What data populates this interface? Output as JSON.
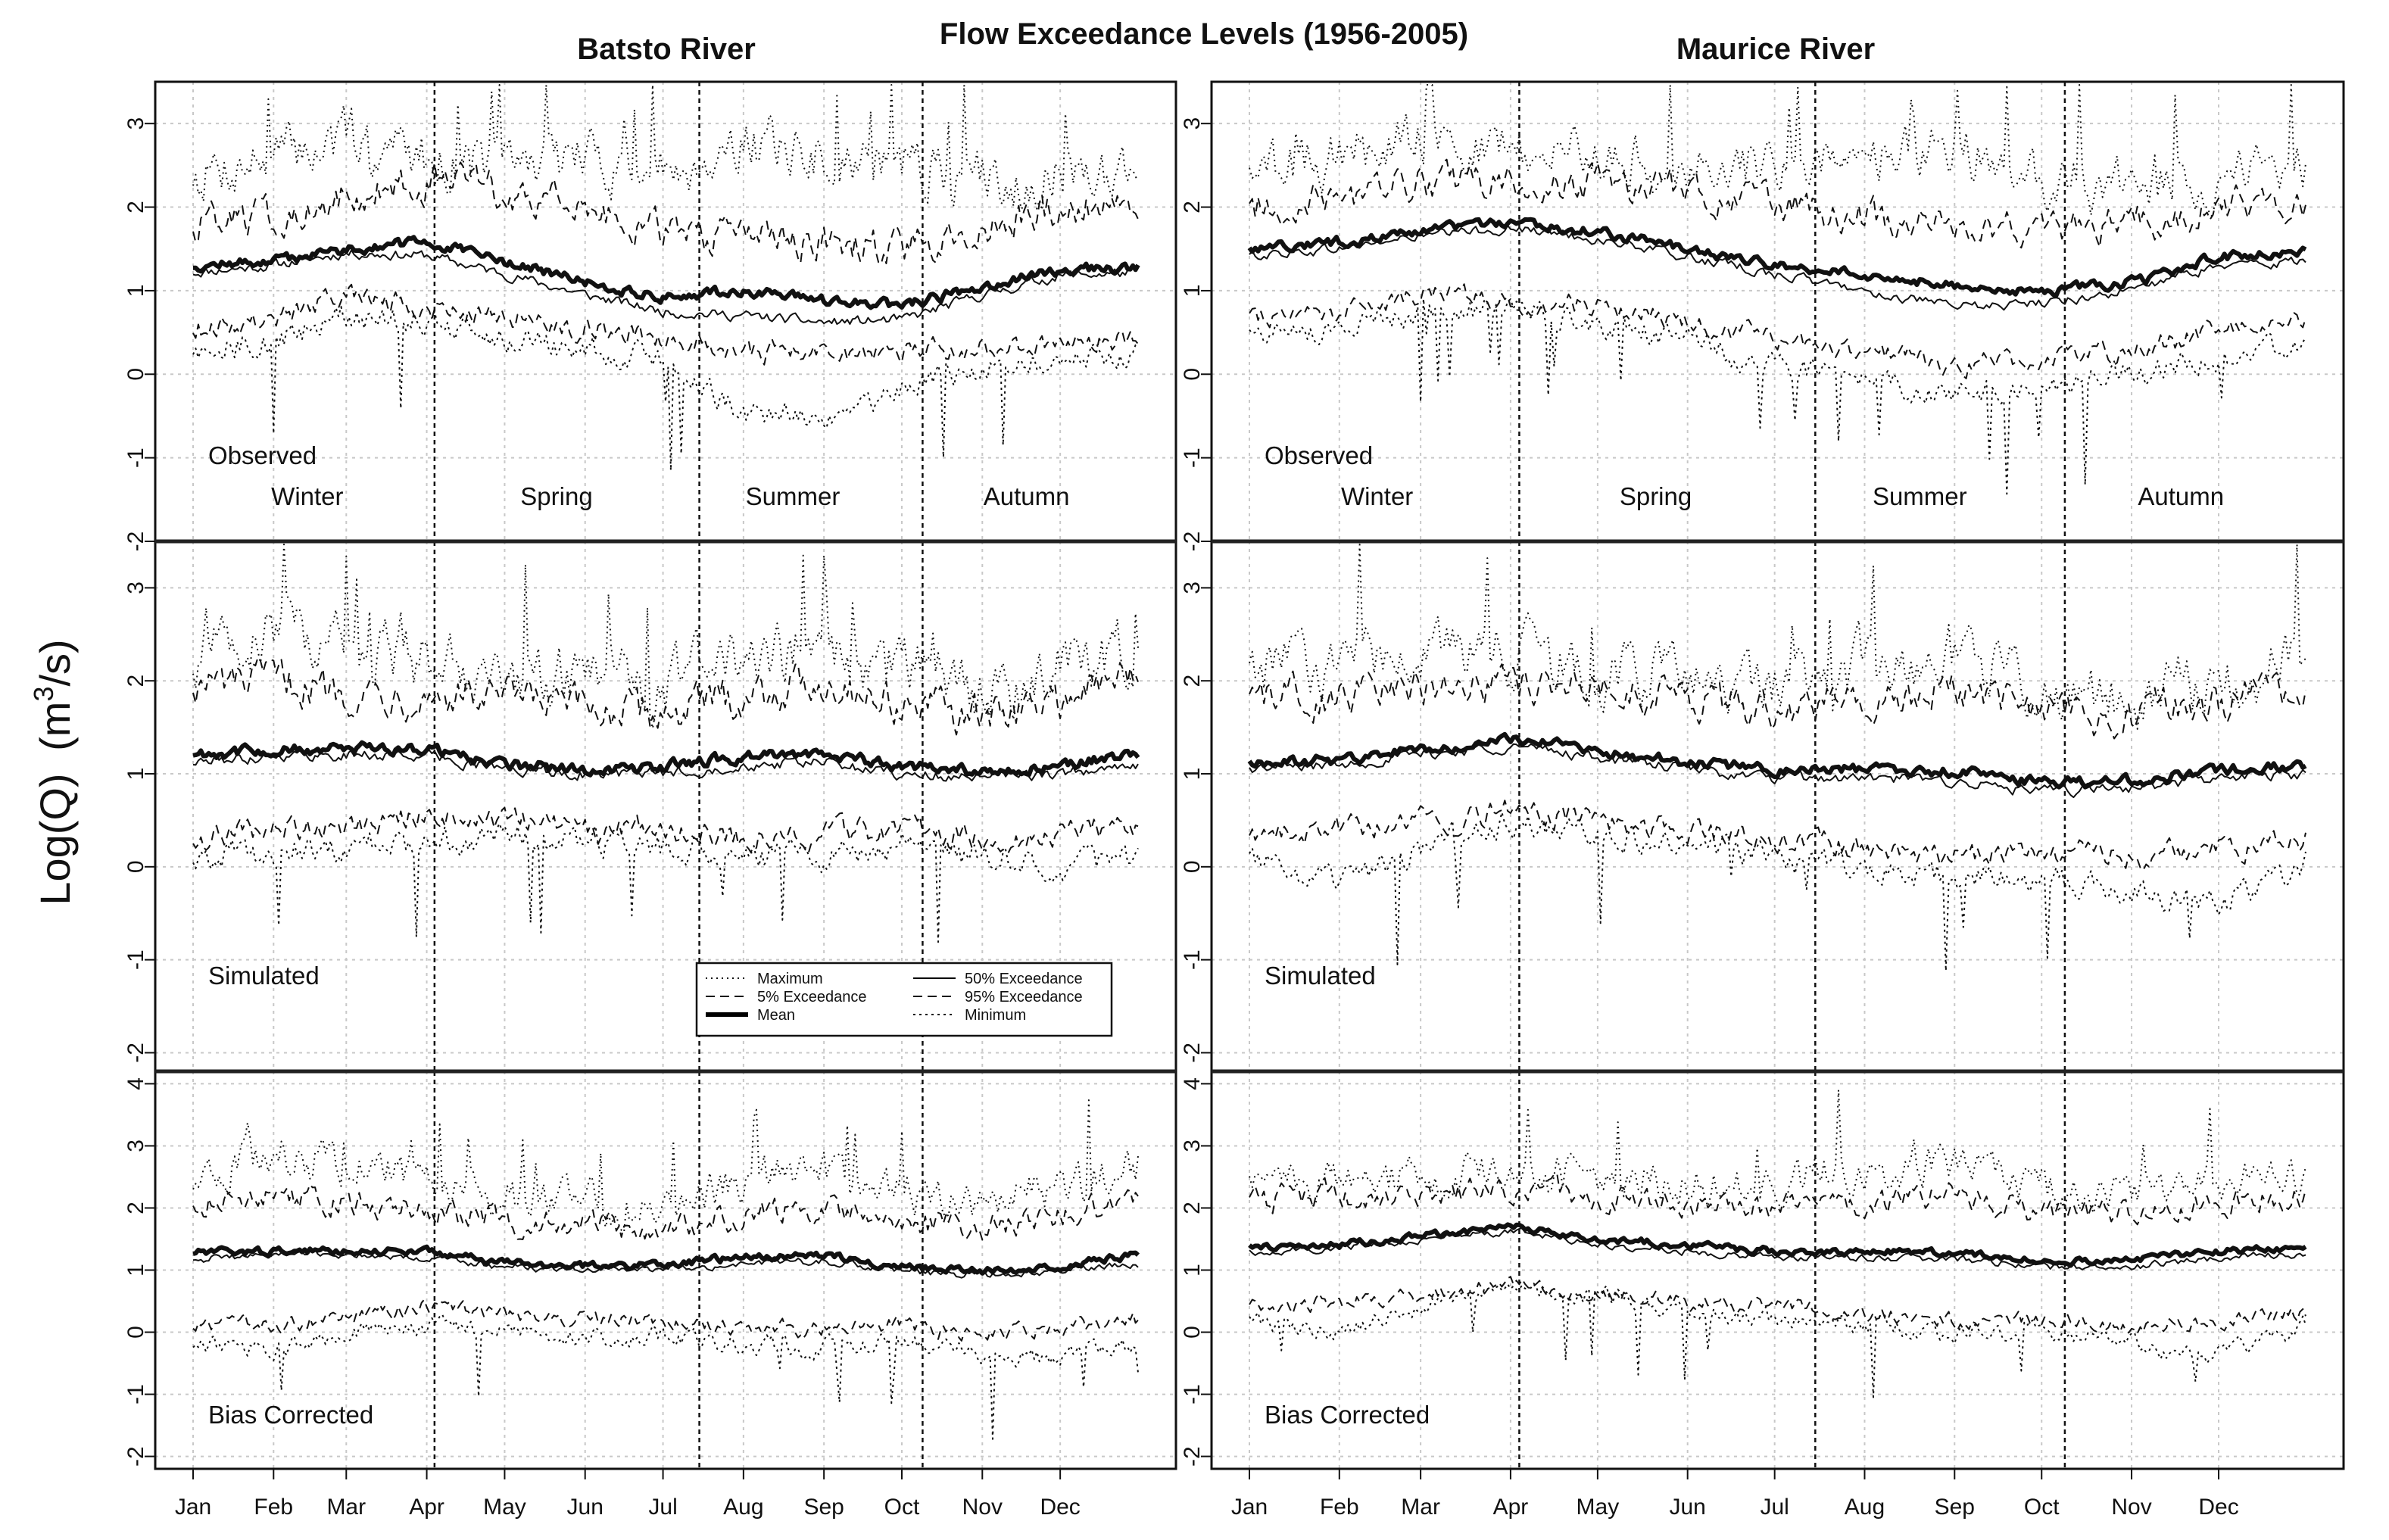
{
  "chart_data": {
    "type": "line",
    "title": "Flow Exceedance Levels (1956-2005)",
    "ylabel_main": "Log(Q)",
    "ylabel_unit": "(m",
    "ylabel_sup": "3",
    "ylabel_tail": "/s)",
    "months": [
      "Jan",
      "Feb",
      "Mar",
      "Apr",
      "May",
      "Jun",
      "Jul",
      "Aug",
      "Sep",
      "Oct",
      "Nov",
      "Dec"
    ],
    "seasons": [
      "Winter",
      "Spring",
      "Summer",
      "Autumn"
    ],
    "season_bounds_doy": [
      94,
      196,
      282
    ],
    "legend": {
      "maximum": "Maximum",
      "q5": "5% Exceedance",
      "mean": "Mean",
      "q50": "50% Exceedance",
      "q95": "95% Exceedance",
      "minimum": "Minimum"
    },
    "columns": [
      {
        "river": "Batsto River",
        "panels": [
          {
            "label": "Observed",
            "ylim": [
              -2,
              3.5
            ],
            "yticks": [
              -2,
              -1,
              0,
              1,
              2,
              3
            ],
            "x_doy": [
              1,
              31,
              60,
              91,
              121,
              152,
              182,
              213,
              244,
              274,
              305,
              335,
              365
            ],
            "maximum": [
              2.4,
              2.6,
              2.8,
              2.6,
              2.5,
              2.6,
              2.4,
              2.8,
              2.6,
              2.5,
              2.3,
              2.4,
              2.5
            ],
            "q5": [
              1.8,
              1.9,
              2.1,
              2.3,
              2.2,
              2.0,
              1.7,
              1.6,
              1.6,
              1.5,
              1.7,
              2.0,
              2.1
            ],
            "mean": [
              1.3,
              1.35,
              1.5,
              1.58,
              1.35,
              1.1,
              0.92,
              1.0,
              0.88,
              0.82,
              1.05,
              1.25,
              1.28
            ],
            "q50": [
              1.22,
              1.3,
              1.45,
              1.42,
              1.2,
              0.95,
              0.75,
              0.7,
              0.62,
              0.65,
              0.95,
              1.18,
              1.22
            ],
            "q95": [
              0.55,
              0.65,
              0.95,
              0.8,
              0.7,
              0.55,
              0.45,
              0.28,
              0.25,
              0.28,
              0.3,
              0.38,
              0.42
            ],
            "minimum": [
              0.3,
              0.4,
              0.7,
              0.65,
              0.4,
              0.3,
              0.2,
              -0.45,
              -0.5,
              -0.2,
              0.1,
              0.2,
              0.25
            ]
          },
          {
            "label": "Simulated",
            "ylim": [
              -2.2,
              3.5
            ],
            "yticks": [
              -2,
              -1,
              0,
              1,
              2,
              3
            ],
            "x_doy": [
              1,
              31,
              60,
              91,
              121,
              152,
              182,
              213,
              244,
              274,
              305,
              335,
              365
            ],
            "maximum": [
              2.2,
              2.6,
              2.3,
              2.2,
              2.1,
              2.0,
              1.9,
              2.3,
              2.3,
              2.1,
              1.9,
              2.1,
              2.4
            ],
            "q5": [
              1.95,
              2.0,
              1.9,
              1.85,
              1.8,
              1.7,
              1.65,
              1.85,
              2.0,
              1.75,
              1.6,
              1.8,
              2.1
            ],
            "mean": [
              1.22,
              1.25,
              1.26,
              1.28,
              1.1,
              1.04,
              1.08,
              1.18,
              1.22,
              1.08,
              1.02,
              1.08,
              1.22
            ],
            "q50": [
              1.12,
              1.2,
              1.2,
              1.2,
              1.05,
              1.0,
              1.0,
              1.1,
              1.12,
              1.0,
              0.95,
              1.0,
              1.08
            ],
            "q95": [
              0.3,
              0.4,
              0.45,
              0.55,
              0.5,
              0.4,
              0.4,
              0.3,
              0.35,
              0.4,
              0.3,
              0.35,
              0.45
            ],
            "minimum": [
              0.1,
              0.15,
              0.2,
              0.3,
              0.3,
              0.25,
              0.2,
              0.15,
              0.1,
              0.25,
              0.1,
              0.0,
              0.1
            ]
          },
          {
            "label": "Bias Corrected",
            "ylim": [
              -2.2,
              4.2
            ],
            "yticks": [
              -2,
              -1,
              0,
              1,
              2,
              3,
              4
            ],
            "x_doy": [
              1,
              31,
              60,
              91,
              121,
              152,
              182,
              213,
              244,
              274,
              305,
              335,
              365
            ],
            "maximum": [
              2.4,
              2.9,
              2.7,
              2.4,
              2.2,
              2.1,
              2.0,
              2.5,
              2.6,
              2.2,
              2.0,
              2.3,
              2.7
            ],
            "q5": [
              2.1,
              2.2,
              2.1,
              2.0,
              1.8,
              1.7,
              1.7,
              1.9,
              2.0,
              1.8,
              1.7,
              1.9,
              2.2
            ],
            "mean": [
              1.28,
              1.3,
              1.32,
              1.3,
              1.12,
              1.06,
              1.1,
              1.2,
              1.25,
              1.05,
              0.98,
              1.08,
              1.25
            ],
            "q50": [
              1.18,
              1.25,
              1.25,
              1.2,
              1.05,
              1.0,
              1.02,
              1.1,
              1.15,
              0.98,
              0.92,
              1.0,
              1.1
            ],
            "q95": [
              0.1,
              0.1,
              0.25,
              0.4,
              0.3,
              0.2,
              0.2,
              0.1,
              0.05,
              0.15,
              -0.05,
              0.05,
              0.2
            ],
            "minimum": [
              -0.2,
              -0.25,
              -0.05,
              0.1,
              0.0,
              -0.1,
              -0.05,
              -0.2,
              -0.25,
              -0.1,
              -0.35,
              -0.4,
              -0.2
            ]
          }
        ]
      },
      {
        "river": "Maurice River",
        "panels": [
          {
            "label": "Observed",
            "ylim": [
              -2,
              3.5
            ],
            "yticks": [
              -2,
              -1,
              0,
              1,
              2,
              3
            ],
            "x_doy": [
              1,
              31,
              60,
              91,
              121,
              152,
              182,
              213,
              244,
              274,
              305,
              335,
              365
            ],
            "maximum": [
              2.4,
              2.6,
              2.8,
              2.7,
              2.6,
              2.5,
              2.5,
              2.6,
              2.7,
              2.3,
              2.2,
              2.4,
              2.5
            ],
            "q5": [
              2.0,
              2.1,
              2.3,
              2.3,
              2.3,
              2.2,
              2.0,
              1.9,
              1.8,
              1.7,
              1.8,
              2.0,
              2.1
            ],
            "mean": [
              1.5,
              1.58,
              1.7,
              1.82,
              1.7,
              1.5,
              1.3,
              1.2,
              1.05,
              1.0,
              1.1,
              1.4,
              1.48
            ],
            "q50": [
              1.42,
              1.5,
              1.65,
              1.75,
              1.62,
              1.4,
              1.2,
              1.0,
              0.8,
              0.85,
              1.0,
              1.3,
              1.35
            ],
            "q95": [
              0.7,
              0.75,
              0.95,
              0.9,
              0.8,
              0.6,
              0.4,
              0.3,
              0.1,
              0.2,
              0.3,
              0.5,
              0.65
            ],
            "minimum": [
              0.5,
              0.55,
              0.75,
              0.8,
              0.6,
              0.4,
              0.1,
              -0.1,
              -0.2,
              -0.1,
              0.0,
              0.2,
              0.4
            ]
          },
          {
            "label": "Simulated",
            "ylim": [
              -2.2,
              3.5
            ],
            "yticks": [
              -2,
              -1,
              0,
              1,
              2,
              3
            ],
            "x_doy": [
              1,
              31,
              60,
              91,
              121,
              152,
              182,
              213,
              244,
              274,
              305,
              335,
              365
            ],
            "maximum": [
              2.1,
              2.2,
              2.2,
              2.3,
              2.1,
              2.0,
              2.0,
              2.2,
              2.3,
              1.9,
              1.8,
              2.0,
              2.2
            ],
            "q5": [
              1.8,
              1.85,
              1.9,
              2.0,
              1.9,
              1.8,
              1.7,
              1.8,
              1.9,
              1.7,
              1.6,
              1.8,
              1.9
            ],
            "mean": [
              1.12,
              1.15,
              1.25,
              1.38,
              1.25,
              1.12,
              1.05,
              1.05,
              1.02,
              0.9,
              0.92,
              1.05,
              1.08
            ],
            "q50": [
              1.05,
              1.1,
              1.2,
              1.3,
              1.18,
              1.05,
              0.95,
              0.95,
              0.92,
              0.8,
              0.85,
              0.95,
              1.0
            ],
            "q95": [
              0.3,
              0.4,
              0.5,
              0.6,
              0.5,
              0.4,
              0.3,
              0.2,
              0.1,
              0.2,
              0.1,
              0.2,
              0.3
            ],
            "minimum": [
              0.1,
              -0.2,
              0.2,
              0.5,
              0.4,
              0.25,
              0.1,
              0.0,
              -0.1,
              -0.1,
              -0.3,
              -0.4,
              0.05
            ]
          },
          {
            "label": "Bias Corrected",
            "ylim": [
              -2.2,
              4.2
            ],
            "yticks": [
              -2,
              -1,
              0,
              1,
              2,
              3,
              4
            ],
            "x_doy": [
              1,
              31,
              60,
              91,
              121,
              152,
              182,
              213,
              244,
              274,
              305,
              335,
              365
            ],
            "maximum": [
              2.4,
              2.5,
              2.5,
              2.6,
              2.5,
              2.4,
              2.4,
              2.6,
              2.7,
              2.3,
              2.2,
              2.4,
              2.5
            ],
            "q5": [
              2.1,
              2.2,
              2.2,
              2.3,
              2.2,
              2.1,
              2.0,
              2.1,
              2.2,
              1.9,
              1.9,
              2.1,
              2.2
            ],
            "mean": [
              1.38,
              1.4,
              1.55,
              1.7,
              1.5,
              1.4,
              1.3,
              1.3,
              1.28,
              1.15,
              1.15,
              1.3,
              1.35
            ],
            "q50": [
              1.3,
              1.35,
              1.5,
              1.62,
              1.42,
              1.3,
              1.2,
              1.2,
              1.18,
              1.05,
              1.05,
              1.2,
              1.25
            ],
            "q95": [
              0.4,
              0.5,
              0.6,
              0.8,
              0.6,
              0.5,
              0.4,
              0.3,
              0.2,
              0.2,
              0.1,
              0.2,
              0.3
            ],
            "minimum": [
              0.2,
              0.0,
              0.4,
              0.7,
              0.6,
              0.4,
              0.2,
              0.1,
              0.0,
              0.0,
              -0.2,
              -0.4,
              0.1
            ]
          }
        ]
      }
    ]
  }
}
